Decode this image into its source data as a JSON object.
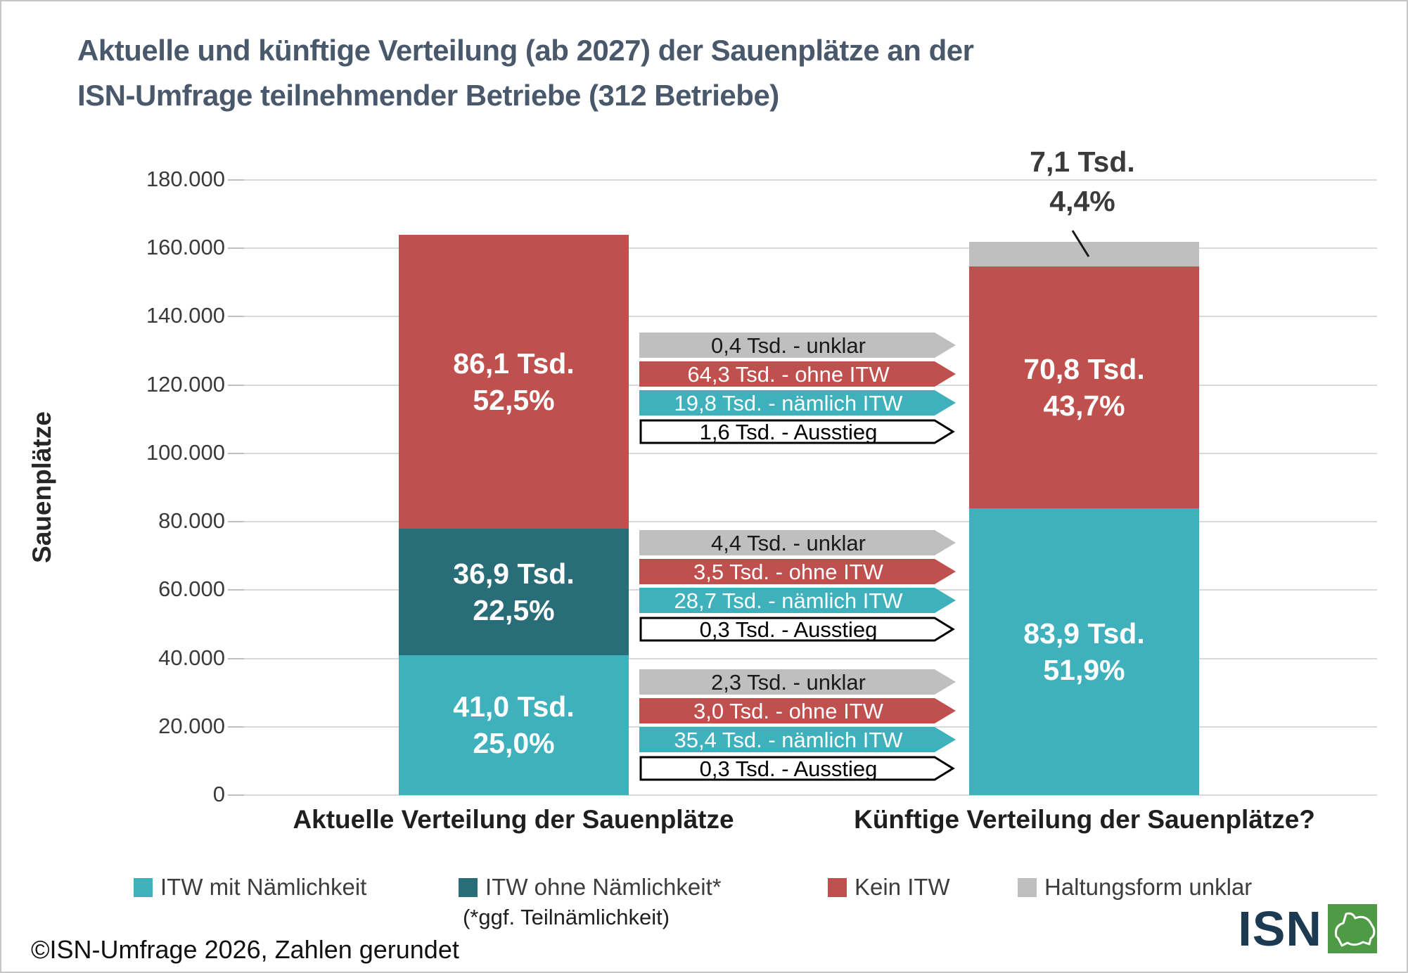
{
  "title": {
    "line1": "Aktuelle und künftige Verteilung (ab 2027) der Sauenplätze an der",
    "line2": "ISN-Umfrage teilnehmender Betriebe (312 Betriebe)"
  },
  "y_axis": {
    "label": "Sauenplätze",
    "ticks": [
      "180.000",
      "160.000",
      "140.000",
      "120.000",
      "100.000",
      "80.000",
      "60.000",
      "40.000",
      "20.000",
      "0"
    ]
  },
  "chart_data": {
    "type": "bar",
    "stacked": true,
    "title": "Aktuelle und künftige Verteilung (ab 2027) der Sauenplätze an der ISN-Umfrage teilnehmender Betriebe (312 Betriebe)",
    "ylabel": "Sauenplätze",
    "ylim": [
      0,
      180000
    ],
    "ytick_interval": 20000,
    "grid": true,
    "categories": [
      "Aktuelle Verteilung der Sauenplätze",
      "Künftige Verteilung der Sauenplätze?"
    ],
    "series": [
      {
        "name": "ITW mit Nämlichkeit",
        "color": "#3eb1bd",
        "values": [
          41000,
          83900
        ],
        "seg_labels": [
          {
            "value": "41,0 Tsd.",
            "pct": "25,0%"
          },
          {
            "value": "83,9 Tsd.",
            "pct": "51,9%"
          }
        ]
      },
      {
        "name": "ITW ohne Nämlichkeit* (*ggf. Teilnämlichkeit)",
        "color": "#296d78",
        "values": [
          36900,
          0
        ],
        "seg_labels": [
          {
            "value": "36,9 Tsd.",
            "pct": "22,5%"
          },
          null
        ]
      },
      {
        "name": "Kein ITW",
        "color": "#c0504d",
        "values": [
          86100,
          70800
        ],
        "seg_labels": [
          {
            "value": "86,1 Tsd.",
            "pct": "52,5%"
          },
          {
            "value": "70,8 Tsd.",
            "pct": "43,7%"
          }
        ]
      },
      {
        "name": "Haltungsform unklar",
        "color": "#bfbfbf",
        "values": [
          0,
          7100
        ],
        "seg_labels": [
          null,
          null
        ]
      }
    ],
    "annotation": {
      "line1": "7,1 Tsd.",
      "line2": "4,4%"
    },
    "flow_groups": [
      {
        "arrows": [
          {
            "label": "0,4 Tsd. - unklar",
            "style": "gray"
          },
          {
            "label": "64,3 Tsd. - ohne ITW",
            "style": "red"
          },
          {
            "label": "19,8 Tsd. - nämlich ITW",
            "style": "teal"
          },
          {
            "label": "1,6 Tsd. - Ausstieg",
            "style": "outline"
          }
        ]
      },
      {
        "arrows": [
          {
            "label": "4,4 Tsd. - unklar",
            "style": "gray"
          },
          {
            "label": "3,5 Tsd. - ohne ITW",
            "style": "red"
          },
          {
            "label": "28,7 Tsd. - nämlich ITW",
            "style": "teal"
          },
          {
            "label": "0,3 Tsd. - Ausstieg",
            "style": "outline"
          }
        ]
      },
      {
        "arrows": [
          {
            "label": "2,3 Tsd. - unklar",
            "style": "gray"
          },
          {
            "label": "3,0 Tsd. - ohne ITW",
            "style": "red"
          },
          {
            "label": "35,4 Tsd. - nämlich ITW",
            "style": "teal"
          },
          {
            "label": "0,3 Tsd. - Ausstieg",
            "style": "outline"
          }
        ]
      }
    ]
  },
  "legend": {
    "items": [
      {
        "label": "ITW mit Nämlichkeit",
        "color": "#3eb1bd"
      },
      {
        "label": "ITW ohne Nämlichkeit*",
        "color": "#296d78",
        "sub": "(*ggf. Teilnämlichkeit)"
      },
      {
        "label": "Kein ITW",
        "color": "#c0504d"
      },
      {
        "label": "Haltungsform unklar",
        "color": "#bfbfbf"
      }
    ]
  },
  "footer": "©ISN-Umfrage 2026, Zahlen gerundet",
  "logo": {
    "text": "ISN"
  },
  "colors": {
    "teal": "#3eb1bd",
    "dark_teal": "#296d78",
    "red": "#c0504d",
    "gray": "#bfbfbf",
    "title": "#49596b",
    "gridline": "#d9d9d9"
  }
}
